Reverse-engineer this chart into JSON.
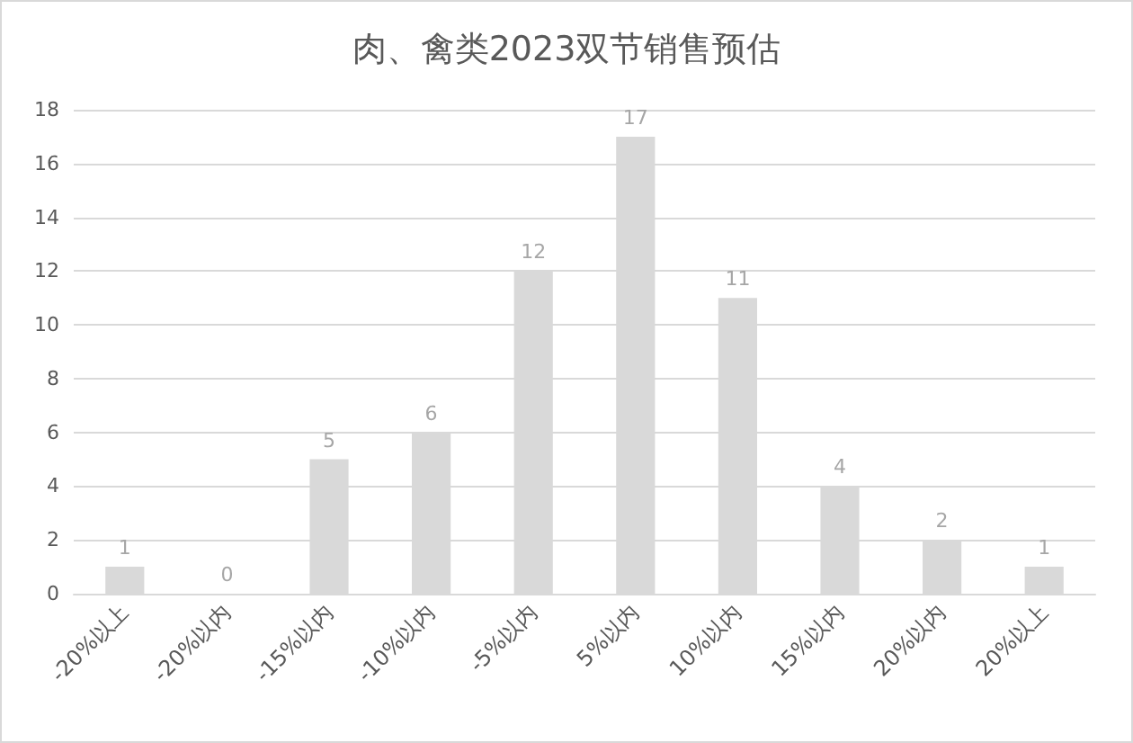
{
  "chart_data": {
    "type": "bar",
    "title": "肉、禽类2023双节销售预估",
    "categories": [
      "-20%以上",
      "-20%以内",
      "-15%以内",
      "-10%以内",
      "-5%以内",
      "5%以内",
      "10%以内",
      "15%以内",
      "20%以内",
      "20%以上"
    ],
    "values": [
      1,
      0,
      5,
      6,
      12,
      17,
      11,
      4,
      2,
      1
    ],
    "color": "#d9d9d9",
    "ylim": [
      0,
      18
    ],
    "yticks": [
      0,
      2,
      4,
      6,
      8,
      10,
      12,
      14,
      16,
      18
    ],
    "grid": "y",
    "data_labels": true
  }
}
